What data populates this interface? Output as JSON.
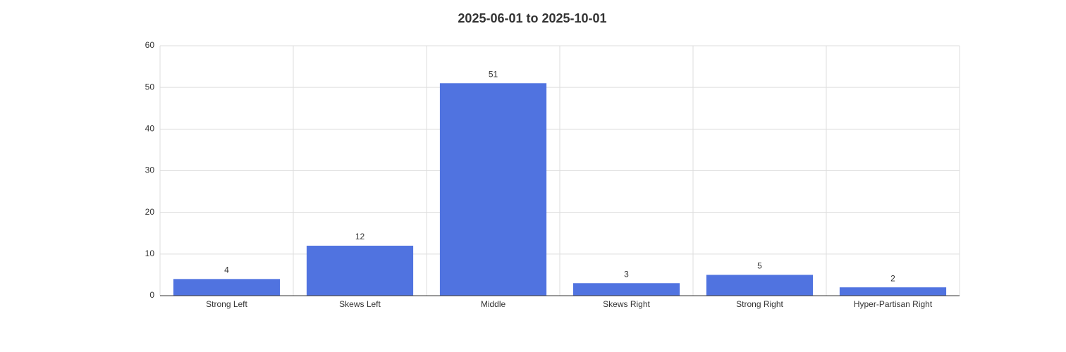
{
  "chart_data": {
    "type": "bar",
    "title": "2025-06-01 to 2025-10-01",
    "categories": [
      "Strong Left",
      "Skews Left",
      "Middle",
      "Skews Right",
      "Strong Right",
      "Hyper-Partisan Right"
    ],
    "values": [
      4,
      12,
      51,
      3,
      5,
      2
    ],
    "color": "#5073e0",
    "ylim": [
      0,
      60
    ],
    "yticks": [
      0,
      10,
      20,
      30,
      40,
      50,
      60
    ],
    "grid": true
  }
}
